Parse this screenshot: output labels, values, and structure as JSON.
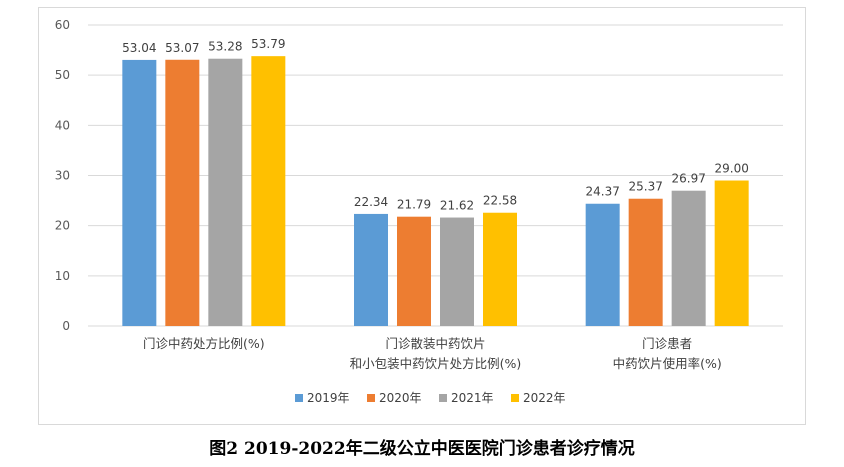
{
  "caption": "图2 2019-2022年二级公立中医医院门诊患者诊疗情况",
  "chart_data": {
    "type": "bar",
    "categories": [
      [
        "门诊中药处方比例(%)"
      ],
      [
        "门诊散装中药饮片",
        "和小包装中药饮片处方比例(%)"
      ],
      [
        "门诊患者",
        "中药饮片使用率(%)"
      ]
    ],
    "series": [
      {
        "name": "2019年",
        "color": "#5b9bd5",
        "values": [
          53.04,
          22.34,
          24.37
        ]
      },
      {
        "name": "2020年",
        "color": "#ed7d31",
        "values": [
          53.07,
          21.79,
          25.37
        ]
      },
      {
        "name": "2021年",
        "color": "#a5a5a5",
        "values": [
          53.28,
          21.62,
          26.97
        ]
      },
      {
        "name": "2022年",
        "color": "#ffc000",
        "values": [
          53.79,
          22.58,
          29.0
        ]
      }
    ],
    "ylim": [
      0,
      60
    ],
    "yticks": [
      0,
      10,
      20,
      30,
      40,
      50,
      60
    ],
    "grid": true,
    "legend": "bottom",
    "title": "",
    "xlabel": "",
    "ylabel": ""
  }
}
